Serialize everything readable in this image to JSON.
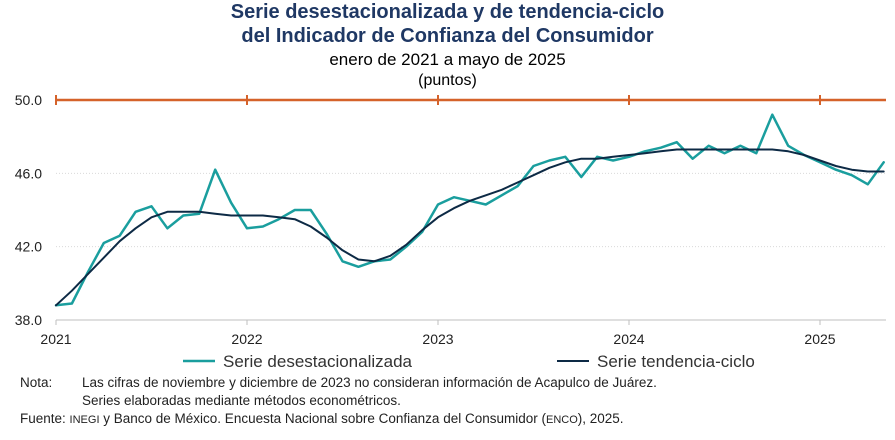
{
  "header": {
    "title_line1": "Serie desestacionalizada y de tendencia-ciclo",
    "title_line2": "del Indicador de Confianza del Consumidor",
    "subtitle": "enero de 2021 a mayo de 2025",
    "unit": "(puntos)"
  },
  "colors": {
    "title": "#1f3864",
    "seasonal_series": "#1a9e9e",
    "trend_series": "#0d2a45",
    "reference_line": "#d5622a",
    "grid": "#d9d9d9"
  },
  "chart_data": {
    "type": "line",
    "ylim": [
      38.0,
      50.0
    ],
    "yticks": [
      "38.0",
      "42.0",
      "46.0",
      "50.0"
    ],
    "xticks": [
      "2021",
      "2022",
      "2023",
      "2024",
      "2025"
    ],
    "x_start": "2021-01",
    "x_end": "2025-05",
    "grid": true,
    "legend_position": "bottom",
    "reference_line": {
      "value": 50.0
    },
    "series": [
      {
        "name": "Serie desestacionalizada",
        "values": [
          38.8,
          38.9,
          40.6,
          42.2,
          42.6,
          43.9,
          44.2,
          43.0,
          43.7,
          43.8,
          46.2,
          44.4,
          43.0,
          43.1,
          43.5,
          44.0,
          44.0,
          42.7,
          41.2,
          40.9,
          41.2,
          41.3,
          42.0,
          42.8,
          44.3,
          44.7,
          44.5,
          44.3,
          44.8,
          45.3,
          46.4,
          46.7,
          46.9,
          45.8,
          46.9,
          46.7,
          46.9,
          47.2,
          47.4,
          47.7,
          46.8,
          47.5,
          47.1,
          47.5,
          47.1,
          49.2,
          47.5,
          47.0,
          46.6,
          46.2,
          45.9,
          45.4,
          46.6
        ]
      },
      {
        "name": "Serie tendencia-ciclo",
        "values": [
          38.8,
          39.6,
          40.5,
          41.4,
          42.3,
          43.0,
          43.6,
          43.9,
          43.9,
          43.9,
          43.8,
          43.7,
          43.7,
          43.7,
          43.6,
          43.5,
          43.1,
          42.5,
          41.8,
          41.3,
          41.2,
          41.5,
          42.1,
          42.9,
          43.6,
          44.1,
          44.5,
          44.8,
          45.1,
          45.5,
          45.9,
          46.3,
          46.6,
          46.8,
          46.8,
          46.9,
          47.0,
          47.1,
          47.2,
          47.3,
          47.3,
          47.3,
          47.3,
          47.3,
          47.3,
          47.3,
          47.2,
          47.0,
          46.7,
          46.4,
          46.2,
          46.1,
          46.1
        ]
      }
    ]
  },
  "notes": {
    "nota_label": "Nota:",
    "nota_line1": "Las cifras de noviembre y diciembre de 2023 no consideran información de Acapulco de Juárez.",
    "nota_line2": "Series elaboradas mediante métodos econométricos.",
    "fuente_label": "Fuente:",
    "fuente_inegi": "INEGI",
    "fuente_mid": " y Banco de México. Encuesta Nacional sobre Confianza del Consumidor (",
    "fuente_enco": "ENCO",
    "fuente_end": "), 2025."
  }
}
